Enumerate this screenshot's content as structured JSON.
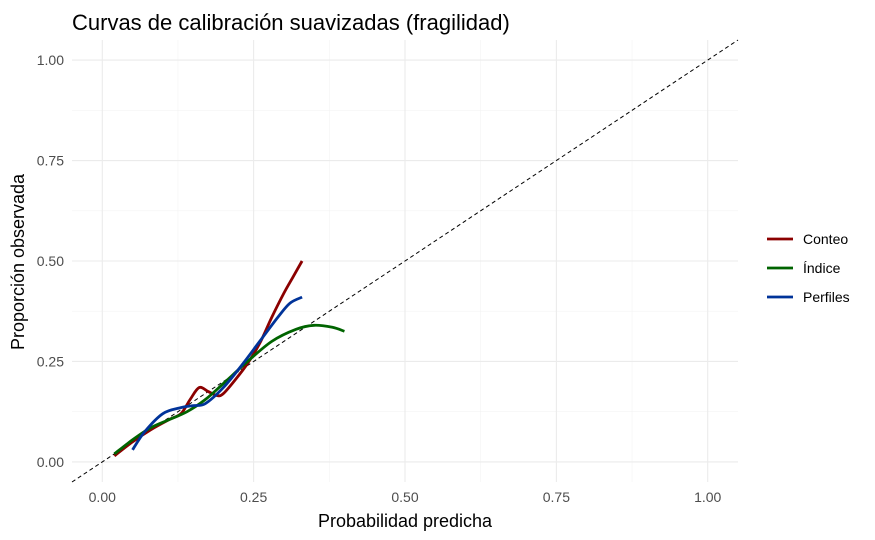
{
  "chart_data": {
    "type": "line",
    "title": "Curvas de calibración suavizadas (fragilidad)",
    "xlabel": "Probabilidad predicha",
    "ylabel": "Proporción observada",
    "xlim": [
      -0.05,
      1.05
    ],
    "ylim": [
      -0.05,
      1.05
    ],
    "x_ticks": [
      "0.00",
      "0.25",
      "0.50",
      "0.75",
      "1.00"
    ],
    "y_ticks": [
      "0.00",
      "0.25",
      "0.50",
      "0.75",
      "1.00"
    ],
    "grid": true,
    "legend_position": "right",
    "reference_line": {
      "style": "dashed",
      "color": "#000000",
      "x": [
        -0.05,
        1.05
      ],
      "y": [
        -0.05,
        1.05
      ]
    },
    "series": [
      {
        "name": "Conteo",
        "color": "#8b0000",
        "x": [
          0.02,
          0.05,
          0.08,
          0.11,
          0.13,
          0.145,
          0.16,
          0.175,
          0.19,
          0.2,
          0.22,
          0.24,
          0.26,
          0.28,
          0.3,
          0.315,
          0.33
        ],
        "y": [
          0.015,
          0.05,
          0.08,
          0.105,
          0.12,
          0.155,
          0.185,
          0.175,
          0.165,
          0.17,
          0.205,
          0.245,
          0.295,
          0.36,
          0.42,
          0.46,
          0.5
        ]
      },
      {
        "name": "Índice",
        "color": "#006400",
        "x": [
          0.02,
          0.05,
          0.08,
          0.11,
          0.14,
          0.17,
          0.2,
          0.24,
          0.28,
          0.32,
          0.35,
          0.38,
          0.4
        ],
        "y": [
          0.02,
          0.055,
          0.085,
          0.105,
          0.125,
          0.155,
          0.195,
          0.25,
          0.3,
          0.33,
          0.34,
          0.335,
          0.325
        ]
      },
      {
        "name": "Perfiles",
        "color": "#003399",
        "x": [
          0.05,
          0.07,
          0.1,
          0.13,
          0.15,
          0.17,
          0.2,
          0.23,
          0.26,
          0.29,
          0.31,
          0.33
        ],
        "y": [
          0.03,
          0.075,
          0.12,
          0.135,
          0.14,
          0.145,
          0.185,
          0.24,
          0.3,
          0.36,
          0.395,
          0.41
        ]
      }
    ]
  }
}
